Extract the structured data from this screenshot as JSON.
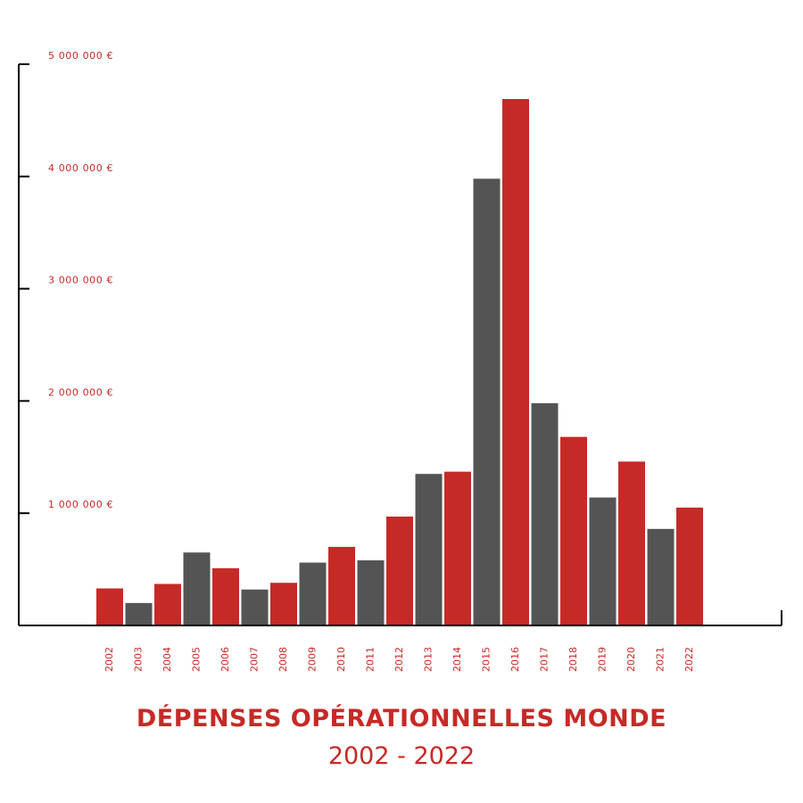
{
  "colors": {
    "red": "#c62a26",
    "grey": "#545454",
    "axis": "#000000"
  },
  "chart_data": {
    "type": "bar",
    "title": "DÉPENSES OPÉRATIONNELLES MONDE",
    "subtitle": "2002 - 2022",
    "xlabel": "",
    "ylabel": "",
    "ylim": [
      0,
      5000000
    ],
    "y_ticks": [
      {
        "value": 1000000,
        "label": "1 000 000 €"
      },
      {
        "value": 2000000,
        "label": "2 000 000 €"
      },
      {
        "value": 3000000,
        "label": "3 000 000 €"
      },
      {
        "value": 4000000,
        "label": "4 000 000 €"
      },
      {
        "value": 5000000,
        "label": "5 000 000 €"
      }
    ],
    "grid": false,
    "bar_colors": "alternating red / grey",
    "categories": [
      "2002",
      "2003",
      "2004",
      "2005",
      "2006",
      "2007",
      "2008",
      "2009",
      "2010",
      "2011",
      "2012",
      "2013",
      "2014",
      "2015",
      "2016",
      "2017",
      "2018",
      "2019",
      "2020",
      "2021",
      "2022"
    ],
    "values": [
      330000,
      200000,
      370000,
      650000,
      510000,
      320000,
      380000,
      560000,
      700000,
      580000,
      970000,
      1350000,
      1370000,
      3980000,
      4690000,
      1980000,
      1680000,
      1140000,
      1460000,
      860000,
      1050000
    ]
  }
}
